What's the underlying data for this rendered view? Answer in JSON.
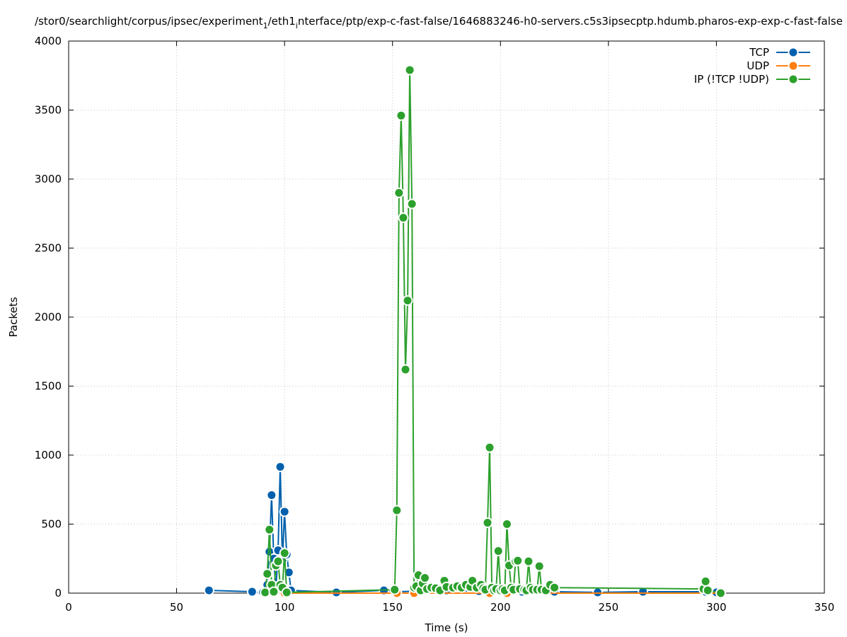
{
  "chart_data": {
    "type": "line",
    "title": "/stor0/searchlight/corpus/ipsec/experiment_1/eth1_interface/ptp/exp-c-fast-false/1646883246-h0-servers.c5s3ipsecptp.hdumb.pharos-exp-exp-c-fast-false",
    "title_parts": {
      "a": "/stor0/searchlight/corpus/ipsec/experiment",
      "a_sub": "1",
      "b": "/eth1",
      "b_sub": "i",
      "c": "nterface/ptp/exp-c-fast-false/1646883246-h0-servers.c5s3ipsecptp.hdumb.pharos-exp-exp-c-fast-false"
    },
    "xlabel": "Time (s)",
    "ylabel": "Packets",
    "xlim": [
      0,
      350
    ],
    "ylim": [
      0,
      4000
    ],
    "xticks": [
      0,
      50,
      100,
      150,
      200,
      250,
      300,
      350
    ],
    "yticks": [
      0,
      500,
      1000,
      1500,
      2000,
      2500,
      3000,
      3500,
      4000
    ],
    "grid": true,
    "legend_position": "top-right",
    "series": [
      {
        "name": "TCP",
        "color": "#0060ad",
        "points": [
          [
            65,
            20
          ],
          [
            85,
            10
          ],
          [
            90,
            5
          ],
          [
            92,
            60
          ],
          [
            93,
            300
          ],
          [
            94,
            710
          ],
          [
            95,
            250
          ],
          [
            96,
            20
          ],
          [
            97,
            310
          ],
          [
            98,
            915
          ],
          [
            99,
            240
          ],
          [
            100,
            590
          ],
          [
            101,
            280
          ],
          [
            102,
            150
          ],
          [
            103,
            20
          ],
          [
            124,
            5
          ],
          [
            146,
            20
          ],
          [
            152,
            10
          ],
          [
            163,
            15
          ],
          [
            175,
            20
          ],
          [
            190,
            15
          ],
          [
            210,
            10
          ],
          [
            225,
            10
          ],
          [
            245,
            5
          ],
          [
            266,
            10
          ],
          [
            295,
            10
          ],
          [
            300,
            5
          ]
        ]
      },
      {
        "name": "UDP",
        "color": "#ff7f0e",
        "points": [
          [
            91,
            0
          ],
          [
            95,
            0
          ],
          [
            100,
            0
          ],
          [
            152,
            0
          ],
          [
            160,
            0
          ],
          [
            195,
            0
          ],
          [
            203,
            0
          ],
          [
            302,
            0
          ]
        ]
      },
      {
        "name": "IP (!TCP  !UDP)",
        "color": "#2ca02c",
        "points": [
          [
            91,
            5
          ],
          [
            92,
            140
          ],
          [
            93,
            460
          ],
          [
            94,
            60
          ],
          [
            95,
            10
          ],
          [
            96,
            200
          ],
          [
            97,
            230
          ],
          [
            98,
            60
          ],
          [
            99,
            40
          ],
          [
            100,
            290
          ],
          [
            101,
            5
          ],
          [
            151,
            25
          ],
          [
            152,
            600
          ],
          [
            153,
            2900
          ],
          [
            154,
            3460
          ],
          [
            155,
            2720
          ],
          [
            156,
            1620
          ],
          [
            157,
            2120
          ],
          [
            158,
            3790
          ],
          [
            159,
            2820
          ],
          [
            160,
            40
          ],
          [
            161,
            50
          ],
          [
            162,
            130
          ],
          [
            163,
            20
          ],
          [
            164,
            70
          ],
          [
            165,
            110
          ],
          [
            166,
            30
          ],
          [
            168,
            40
          ],
          [
            170,
            35
          ],
          [
            172,
            20
          ],
          [
            174,
            90
          ],
          [
            175,
            45
          ],
          [
            178,
            40
          ],
          [
            180,
            50
          ],
          [
            182,
            40
          ],
          [
            184,
            60
          ],
          [
            186,
            45
          ],
          [
            187,
            90
          ],
          [
            189,
            40
          ],
          [
            191,
            60
          ],
          [
            192,
            35
          ],
          [
            193,
            25
          ],
          [
            194,
            510
          ],
          [
            195,
            1055
          ],
          [
            196,
            40
          ],
          [
            197,
            20
          ],
          [
            198,
            30
          ],
          [
            199,
            305
          ],
          [
            200,
            20
          ],
          [
            201,
            30
          ],
          [
            202,
            20
          ],
          [
            203,
            500
          ],
          [
            204,
            200
          ],
          [
            205,
            40
          ],
          [
            206,
            25
          ],
          [
            207,
            230
          ],
          [
            208,
            235
          ],
          [
            209,
            30
          ],
          [
            211,
            25
          ],
          [
            212,
            20
          ],
          [
            213,
            230
          ],
          [
            214,
            40
          ],
          [
            215,
            25
          ],
          [
            217,
            25
          ],
          [
            218,
            195
          ],
          [
            219,
            25
          ],
          [
            221,
            20
          ],
          [
            223,
            60
          ],
          [
            225,
            40
          ],
          [
            294,
            30
          ],
          [
            295,
            85
          ],
          [
            296,
            20
          ],
          [
            302,
            0
          ]
        ]
      }
    ]
  }
}
